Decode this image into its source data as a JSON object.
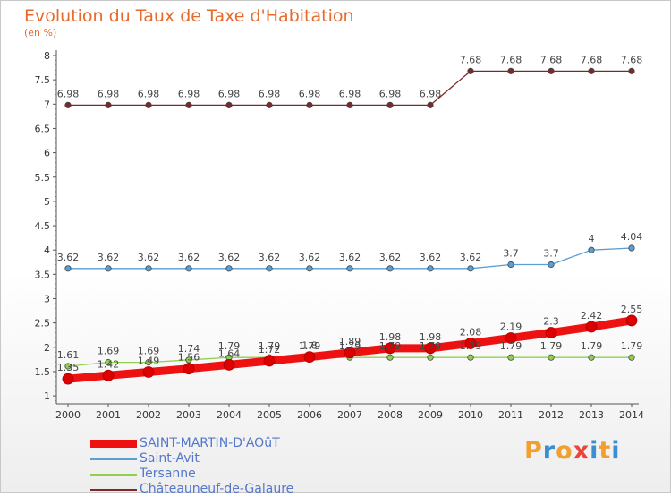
{
  "header": {
    "title": "Evolution du Taux de Taxe d'Habitation",
    "subtitle": "(en %)"
  },
  "logo": {
    "letters": [
      "P",
      "r",
      "o",
      "x",
      "i",
      "t",
      "i"
    ],
    "colors": [
      "#f0a030",
      "#3a8fd0",
      "#f0a030",
      "#e8463c",
      "#3a8fd0",
      "#f0a030",
      "#3a8fd0"
    ]
  },
  "chart_data": {
    "type": "line",
    "title": "Evolution du Taux de Taxe d'Habitation",
    "ylabel": "(en %)",
    "xlabel": "",
    "x": [
      "2000",
      "2001",
      "2002",
      "2003",
      "2004",
      "2005",
      "2006",
      "2007",
      "2008",
      "2009",
      "2010",
      "2011",
      "2012",
      "2013",
      "2014"
    ],
    "ylim": [
      1,
      8
    ],
    "yticks": [
      "1",
      "1.5",
      "2",
      "2.5",
      "3",
      "3.5",
      "4",
      "4.5",
      "5",
      "5.5",
      "6",
      "6.5",
      "7",
      "7.5",
      "8"
    ],
    "grid": false,
    "legend_position": "bottom-left",
    "series": [
      {
        "name": "SAINT-MARTIN-D'AOûT",
        "color": "#ee1111",
        "line_width": 9,
        "point_r": 6,
        "values": [
          1.35,
          1.42,
          1.49,
          1.56,
          1.64,
          1.72,
          1.8,
          1.89,
          1.98,
          1.98,
          2.08,
          2.19,
          2.3,
          2.42,
          2.55
        ],
        "labels": [
          "1.35",
          "1.42",
          "1.49",
          "1.56",
          "1.64",
          "1.72",
          "1.8",
          "1.89",
          "1.98",
          "1.98",
          "2.08",
          "2.19",
          "2.3",
          "2.42",
          "2.55"
        ]
      },
      {
        "name": "Saint-Avit",
        "color": "#5b9ed1",
        "line_width": 1.3,
        "point_r": 3.2,
        "values": [
          3.62,
          3.62,
          3.62,
          3.62,
          3.62,
          3.62,
          3.62,
          3.62,
          3.62,
          3.62,
          3.62,
          3.7,
          3.7,
          4,
          4.04
        ],
        "labels": [
          "3.62",
          "3.62",
          "3.62",
          "3.62",
          "3.62",
          "3.62",
          "3.62",
          "3.62",
          "3.62",
          "3.62",
          "3.62",
          "3.7",
          "3.7",
          "4",
          "4.04"
        ]
      },
      {
        "name": "Tersanne",
        "color": "#8fd14f",
        "line_width": 1.3,
        "point_r": 3.2,
        "values": [
          1.61,
          1.69,
          1.69,
          1.74,
          1.79,
          1.79,
          1.79,
          1.79,
          1.79,
          1.79,
          1.79,
          1.79,
          1.79,
          1.79,
          1.79
        ],
        "labels": [
          "1.61",
          "1.69",
          "1.69",
          "1.74",
          "1.79",
          "1.79",
          "1.79",
          "1.79",
          "1.79",
          "1.79",
          "1.79",
          "1.79",
          "1.79",
          "1.79",
          "1.79"
        ]
      },
      {
        "name": "Châteauneuf-de-Galaure",
        "color": "#7a2a2a",
        "line_width": 1.3,
        "point_r": 3.2,
        "values": [
          6.98,
          6.98,
          6.98,
          6.98,
          6.98,
          6.98,
          6.98,
          6.98,
          6.98,
          6.98,
          7.68,
          7.68,
          7.68,
          7.68,
          7.68
        ],
        "labels": [
          "6.98",
          "6.98",
          "6.98",
          "6.98",
          "6.98",
          "6.98",
          "6.98",
          "6.98",
          "6.98",
          "6.98",
          "7.68",
          "7.68",
          "7.68",
          "7.68",
          "7.68"
        ]
      }
    ]
  }
}
